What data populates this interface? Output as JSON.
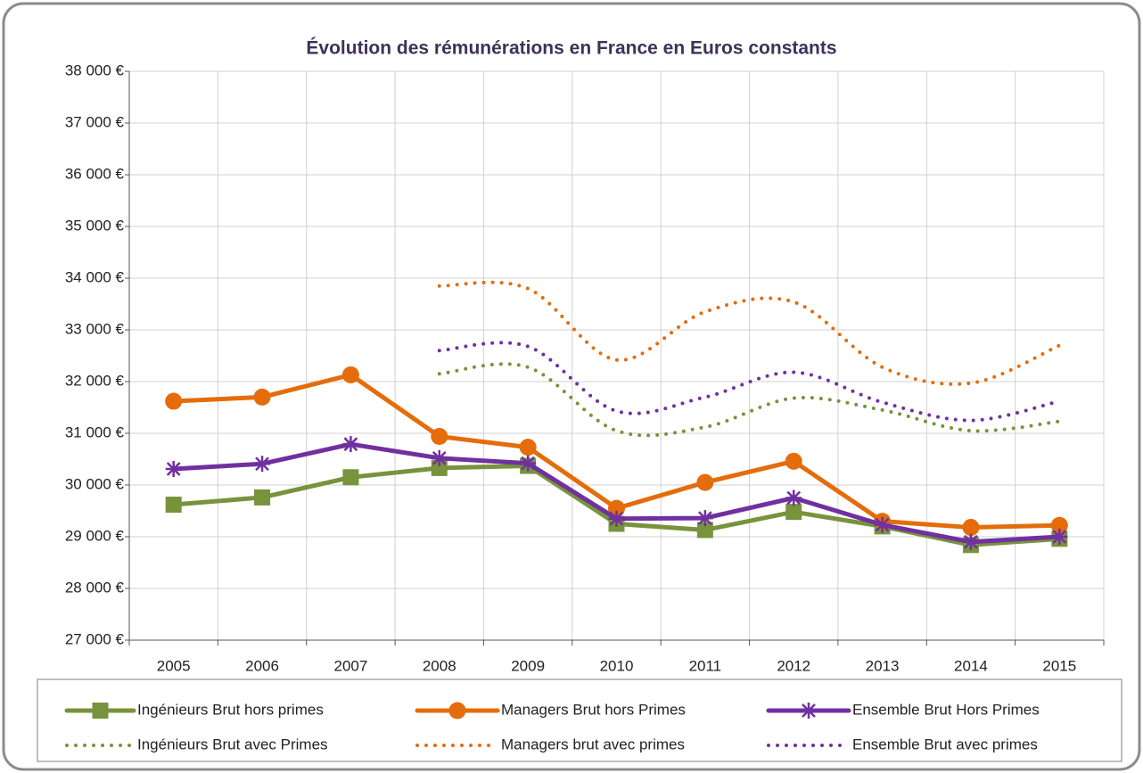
{
  "chart_data": {
    "type": "line",
    "title": "Évolution des rémunérations en France en Euros constants",
    "categories": [
      "2005",
      "2006",
      "2007",
      "2008",
      "2009",
      "2010",
      "2011",
      "2012",
      "2013",
      "2014",
      "2015"
    ],
    "ylim": [
      27000,
      38000
    ],
    "yticks": [
      {
        "value": 27000,
        "label": "27 000 €"
      },
      {
        "value": 28000,
        "label": "28 000 €"
      },
      {
        "value": 29000,
        "label": "29 000 €"
      },
      {
        "value": 30000,
        "label": "30 000 €"
      },
      {
        "value": 31000,
        "label": "31 000 €"
      },
      {
        "value": 32000,
        "label": "32 000 €"
      },
      {
        "value": 33000,
        "label": "33 000 €"
      },
      {
        "value": 34000,
        "label": "34 000 €"
      },
      {
        "value": 35000,
        "label": "35 000 €"
      },
      {
        "value": 36000,
        "label": "36 000 €"
      },
      {
        "value": 37000,
        "label": "37 000 €"
      },
      {
        "value": 38000,
        "label": "38 000 €"
      }
    ],
    "grid": true,
    "legend": "bottom",
    "series": [
      {
        "name": "Ingénieurs Brut hors primes",
        "color": "#77933c",
        "style": "solid",
        "marker": "square",
        "values": [
          29620,
          29760,
          30150,
          30330,
          30370,
          29250,
          29130,
          29480,
          29200,
          28840,
          28960
        ]
      },
      {
        "name": "Managers Brut hors Primes",
        "color": "#e46c0a",
        "style": "solid",
        "marker": "circle",
        "values": [
          31620,
          31700,
          32130,
          30940,
          30730,
          29550,
          30050,
          30460,
          29300,
          29180,
          29220
        ]
      },
      {
        "name": "Ensemble Brut Hors Primes",
        "color": "#7030a0",
        "style": "solid",
        "marker": "asterisk",
        "values": [
          30310,
          30410,
          30790,
          30520,
          30420,
          29350,
          29360,
          29750,
          29230,
          28900,
          29000
        ]
      },
      {
        "name": "Ingénieurs Brut avec Primes",
        "color": "#77933c",
        "style": "dotted",
        "values": [
          null,
          null,
          null,
          32150,
          32280,
          31050,
          31120,
          31680,
          31450,
          31050,
          31230
        ]
      },
      {
        "name": "Managers brut avec primes",
        "color": "#e46c0a",
        "style": "dotted",
        "values": [
          null,
          null,
          null,
          33850,
          33800,
          32420,
          33350,
          33540,
          32280,
          31970,
          32700
        ]
      },
      {
        "name": "Ensemble Brut avec primes",
        "color": "#7030a0",
        "style": "dotted",
        "values": [
          null,
          null,
          null,
          32600,
          32680,
          31430,
          31700,
          32180,
          31600,
          31250,
          31620
        ]
      }
    ]
  }
}
